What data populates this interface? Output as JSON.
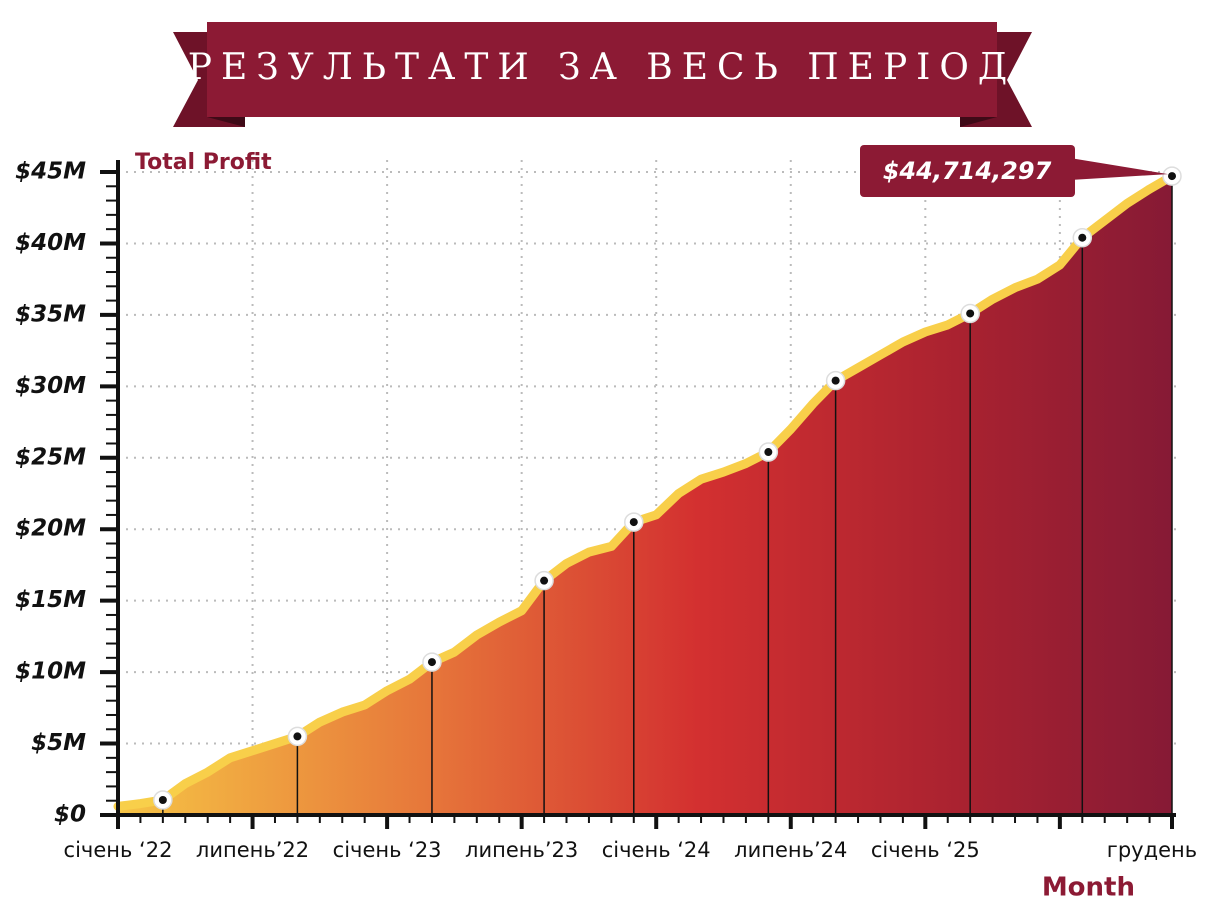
{
  "chart_data": {
    "type": "area",
    "title": "РЕЗУЛЬТАТИ ЗА ВЕСЬ ПЕРІОД",
    "y_label": "Total Profit",
    "x_label": "Month",
    "categories": [
      "січень ‘22",
      null,
      null,
      null,
      null,
      null,
      "липень’22",
      null,
      null,
      null,
      null,
      null,
      "січень ‘23",
      null,
      null,
      null,
      null,
      null,
      "липень’23",
      null,
      null,
      null,
      null,
      null,
      "січень ‘24",
      null,
      null,
      null,
      null,
      null,
      "липень’24",
      null,
      null,
      null,
      null,
      null,
      "січень ‘25",
      null,
      null,
      null,
      null,
      null,
      null,
      null,
      null,
      null,
      null,
      "грудень ‘25"
    ],
    "values": [
      600000,
      800000,
      1050000,
      2200000,
      3000000,
      4000000,
      4500000,
      5000000,
      5500000,
      6500000,
      7200000,
      7700000,
      8700000,
      9500000,
      10700000,
      11400000,
      12600000,
      13500000,
      14300000,
      16400000,
      17600000,
      18400000,
      18800000,
      20500000,
      21000000,
      22500000,
      23500000,
      24000000,
      24600000,
      25400000,
      27000000,
      28800000,
      30400000,
      31300000,
      32200000,
      33100000,
      33800000,
      34300000,
      35100000,
      36100000,
      36900000,
      37500000,
      38500000,
      40400000,
      41600000,
      42800000,
      43800000,
      44714297
    ],
    "value_labels": [
      null,
      null,
      null,
      null,
      null,
      null,
      null,
      null,
      null,
      null,
      null,
      null,
      null,
      null,
      null,
      null,
      null,
      null,
      null,
      null,
      null,
      null,
      null,
      null,
      null,
      null,
      null,
      null,
      null,
      null,
      null,
      null,
      null,
      null,
      null,
      null,
      null,
      null,
      null,
      null,
      null,
      null,
      null,
      null,
      null,
      null,
      null,
      "$44,714,297"
    ],
    "highlight_points": [
      2,
      8,
      14,
      19,
      23,
      29,
      32,
      38,
      43,
      47
    ],
    "line_color": "#f8cf4a",
    "ylim": [
      0,
      45000000
    ],
    "yticks": [
      {
        "value": 0,
        "label": "$0"
      },
      {
        "value": 5000000,
        "label": "$5M"
      },
      {
        "value": 10000000,
        "label": "$10M"
      },
      {
        "value": 15000000,
        "label": "$15M"
      },
      {
        "value": 20000000,
        "label": "$20M"
      },
      {
        "value": 25000000,
        "label": "$25M"
      },
      {
        "value": 30000000,
        "label": "$30M"
      },
      {
        "value": 35000000,
        "label": "$35M"
      },
      {
        "value": 40000000,
        "label": "$40M"
      },
      {
        "value": 45000000,
        "label": "$45M"
      }
    ],
    "grid": true
  }
}
